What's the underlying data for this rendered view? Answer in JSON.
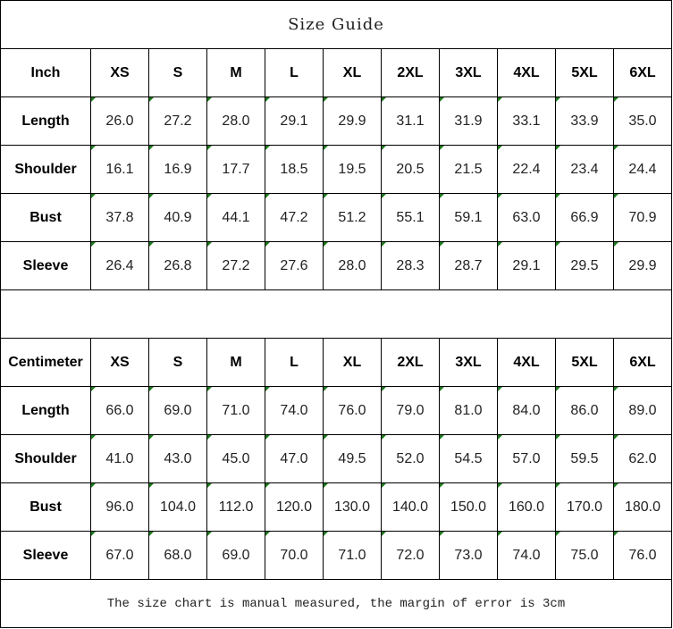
{
  "title": "Size Guide",
  "sizes": [
    "XS",
    "S",
    "M",
    "L",
    "XL",
    "2XL",
    "3XL",
    "4XL",
    "5XL",
    "6XL"
  ],
  "tables": [
    {
      "unit": "Inch",
      "rows": [
        {
          "label": "Length",
          "values": [
            "26.0",
            "27.2",
            "28.0",
            "29.1",
            "29.9",
            "31.1",
            "31.9",
            "33.1",
            "33.9",
            "35.0"
          ]
        },
        {
          "label": "Shoulder",
          "values": [
            "16.1",
            "16.9",
            "17.7",
            "18.5",
            "19.5",
            "20.5",
            "21.5",
            "22.4",
            "23.4",
            "24.4"
          ]
        },
        {
          "label": "Bust",
          "values": [
            "37.8",
            "40.9",
            "44.1",
            "47.2",
            "51.2",
            "55.1",
            "59.1",
            "63.0",
            "66.9",
            "70.9"
          ]
        },
        {
          "label": "Sleeve",
          "values": [
            "26.4",
            "26.8",
            "27.2",
            "27.6",
            "28.0",
            "28.3",
            "28.7",
            "29.1",
            "29.5",
            "29.9"
          ]
        }
      ]
    },
    {
      "unit": "Centimeter",
      "rows": [
        {
          "label": "Length",
          "values": [
            "66.0",
            "69.0",
            "71.0",
            "74.0",
            "76.0",
            "79.0",
            "81.0",
            "84.0",
            "86.0",
            "89.0"
          ]
        },
        {
          "label": "Shoulder",
          "values": [
            "41.0",
            "43.0",
            "45.0",
            "47.0",
            "49.5",
            "52.0",
            "54.5",
            "57.0",
            "59.5",
            "62.0"
          ]
        },
        {
          "label": "Bust",
          "values": [
            "96.0",
            "104.0",
            "112.0",
            "120.0",
            "130.0",
            "140.0",
            "150.0",
            "160.0",
            "170.0",
            "180.0"
          ]
        },
        {
          "label": "Sleeve",
          "values": [
            "67.0",
            "68.0",
            "69.0",
            "70.0",
            "71.0",
            "72.0",
            "73.0",
            "74.0",
            "75.0",
            "76.0"
          ]
        }
      ]
    }
  ],
  "footer": "The size chart is manual measured, the margin of error is 3cm",
  "colors": {
    "corner_marker": "#1a7a1a",
    "border": "#000000"
  }
}
